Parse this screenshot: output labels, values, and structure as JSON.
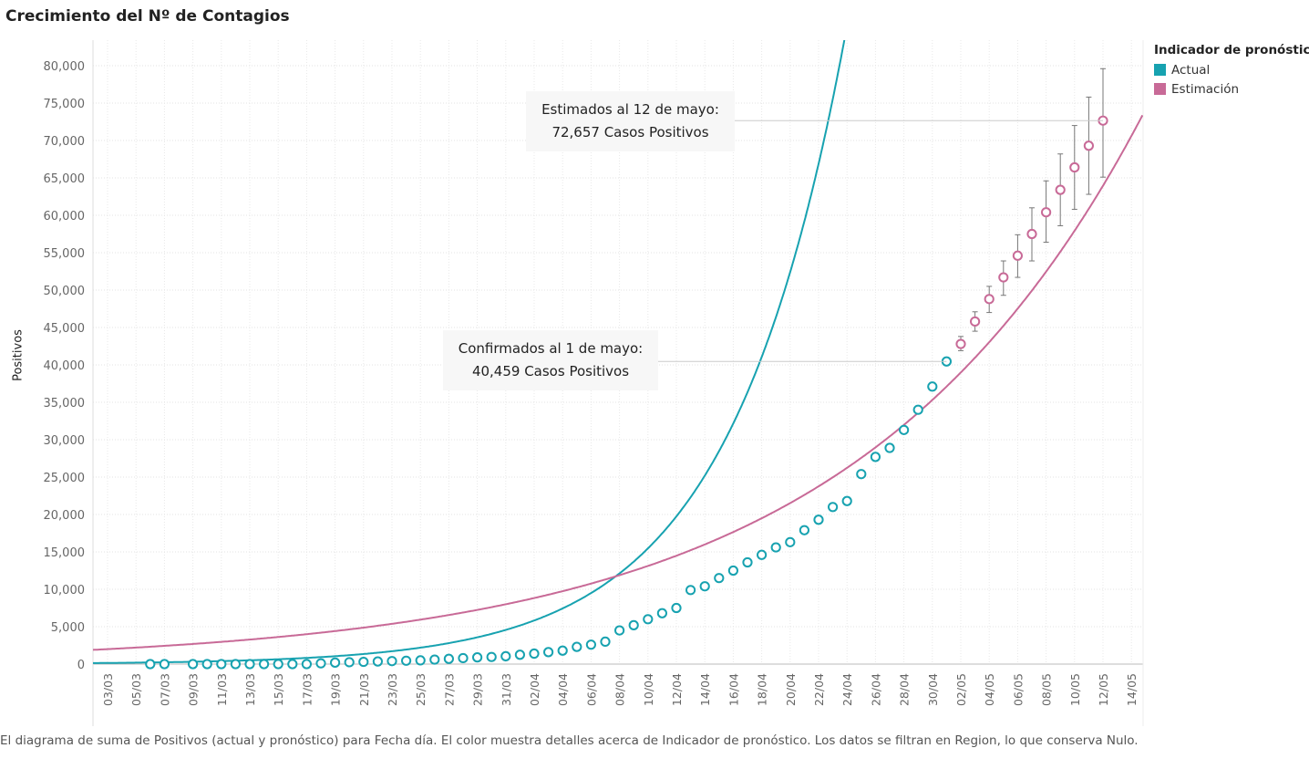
{
  "chart_data": {
    "type": "scatter",
    "title": "Crecimiento del Nº de Contagios",
    "ylabel": "Positivos",
    "xlabel": "",
    "ylim": [
      0,
      82000
    ],
    "y_ticks": [
      0,
      5000,
      10000,
      15000,
      20000,
      25000,
      30000,
      35000,
      40000,
      45000,
      50000,
      55000,
      60000,
      65000,
      70000,
      75000,
      80000
    ],
    "y_tick_labels": [
      "0",
      "5,000",
      "10,000",
      "15,000",
      "20,000",
      "25,000",
      "30,000",
      "35,000",
      "40,000",
      "45,000",
      "50,000",
      "55,000",
      "60,000",
      "65,000",
      "70,000",
      "75,000",
      "80,000"
    ],
    "x_range": [
      "2020-03-03",
      "2020-05-15"
    ],
    "x_tick_dates": [
      "2020-03-03",
      "2020-03-05",
      "2020-03-07",
      "2020-03-09",
      "2020-03-11",
      "2020-03-13",
      "2020-03-15",
      "2020-03-17",
      "2020-03-19",
      "2020-03-21",
      "2020-03-23",
      "2020-03-25",
      "2020-03-27",
      "2020-03-29",
      "2020-03-31",
      "2020-04-02",
      "2020-04-04",
      "2020-04-06",
      "2020-04-08",
      "2020-04-10",
      "2020-04-12",
      "2020-04-14",
      "2020-04-16",
      "2020-04-18",
      "2020-04-20",
      "2020-04-22",
      "2020-04-24",
      "2020-04-26",
      "2020-04-28",
      "2020-04-30",
      "2020-05-02",
      "2020-05-04",
      "2020-05-06",
      "2020-05-08",
      "2020-05-10",
      "2020-05-12",
      "2020-05-14"
    ],
    "x_tick_labels": [
      "03/03",
      "05/03",
      "07/03",
      "09/03",
      "11/03",
      "13/03",
      "15/03",
      "17/03",
      "19/03",
      "21/03",
      "23/03",
      "25/03",
      "27/03",
      "29/03",
      "31/03",
      "02/04",
      "04/04",
      "06/04",
      "08/04",
      "10/04",
      "12/04",
      "14/04",
      "16/04",
      "18/04",
      "20/04",
      "22/04",
      "24/04",
      "26/04",
      "28/04",
      "30/04",
      "02/05",
      "04/05",
      "06/05",
      "08/05",
      "10/05",
      "12/05",
      "14/05"
    ],
    "grid": true,
    "legend_position": "top-right",
    "series": [
      {
        "name": "Actual",
        "color": "#17a2b0",
        "x": [
          "2020-03-06",
          "2020-03-07",
          "2020-03-09",
          "2020-03-10",
          "2020-03-11",
          "2020-03-12",
          "2020-03-13",
          "2020-03-14",
          "2020-03-15",
          "2020-03-16",
          "2020-03-17",
          "2020-03-18",
          "2020-03-19",
          "2020-03-20",
          "2020-03-21",
          "2020-03-22",
          "2020-03-23",
          "2020-03-24",
          "2020-03-25",
          "2020-03-26",
          "2020-03-27",
          "2020-03-28",
          "2020-03-29",
          "2020-03-30",
          "2020-03-31",
          "2020-04-01",
          "2020-04-02",
          "2020-04-03",
          "2020-04-04",
          "2020-04-05",
          "2020-04-06",
          "2020-04-07",
          "2020-04-08",
          "2020-04-09",
          "2020-04-10",
          "2020-04-11",
          "2020-04-12",
          "2020-04-13",
          "2020-04-14",
          "2020-04-15",
          "2020-04-16",
          "2020-04-17",
          "2020-04-18",
          "2020-04-19",
          "2020-04-20",
          "2020-04-21",
          "2020-04-22",
          "2020-04-23",
          "2020-04-24",
          "2020-04-25",
          "2020-04-26",
          "2020-04-27",
          "2020-04-28",
          "2020-04-29",
          "2020-04-30",
          "2020-05-01"
        ],
        "y": [
          0,
          0,
          0,
          0,
          0,
          0,
          0,
          0,
          0,
          0,
          0,
          100,
          200,
          250,
          300,
          350,
          400,
          450,
          500,
          600,
          700,
          800,
          900,
          950,
          1050,
          1250,
          1400,
          1600,
          1800,
          2300,
          2600,
          3000,
          4500,
          5200,
          6000,
          6800,
          7500,
          9900,
          10400,
          11500,
          12500,
          13600,
          14600,
          15600,
          16300,
          17900,
          19300,
          21000,
          21800,
          25400,
          27700,
          28900,
          31300,
          34000,
          37100,
          40459
        ],
        "fit_curve": {
          "type": "exponential",
          "a": 150,
          "b": 0.122,
          "t0": "2020-03-03"
        }
      },
      {
        "name": "Estimación",
        "color": "#c86a97",
        "x": [
          "2020-05-02",
          "2020-05-03",
          "2020-05-04",
          "2020-05-05",
          "2020-05-06",
          "2020-05-07",
          "2020-05-08",
          "2020-05-09",
          "2020-05-10",
          "2020-05-11",
          "2020-05-12"
        ],
        "y": [
          42800,
          45800,
          48800,
          51700,
          54600,
          57500,
          60400,
          63400,
          66400,
          69300,
          72657
        ],
        "error_low": [
          41900,
          44500,
          47000,
          49300,
          51700,
          53900,
          56400,
          58600,
          60800,
          62800,
          65100
        ],
        "error_high": [
          43800,
          47100,
          50500,
          53900,
          57400,
          61000,
          64600,
          68200,
          72000,
          75800,
          79600
        ],
        "fit_curve": {
          "type": "polynomial-exponential",
          "a": 2000,
          "b": 0.0495,
          "t0": "2020-03-03"
        }
      }
    ],
    "annotations": [
      {
        "line1": "Estimados al 12 de mayo:",
        "line2": "72,657 Casos Positivos",
        "x": "2020-05-12",
        "y": 72657
      },
      {
        "line1": "Confirmados al 1 de mayo:",
        "line2": "40,459 Casos Positivos",
        "x": "2020-05-01",
        "y": 40459
      }
    ]
  },
  "legend": {
    "title": "Indicador de pronóstico",
    "items": [
      {
        "label": "Actual",
        "color": "#17a2b0"
      },
      {
        "label": "Estimación",
        "color": "#c86a97"
      }
    ]
  },
  "footer": "El diagrama de suma de Positivos (actual y pronóstico)  para Fecha día.  El color muestra detalles acerca de Indicador de pronóstico. Los datos se filtran en Region, lo que conserva Nulo."
}
